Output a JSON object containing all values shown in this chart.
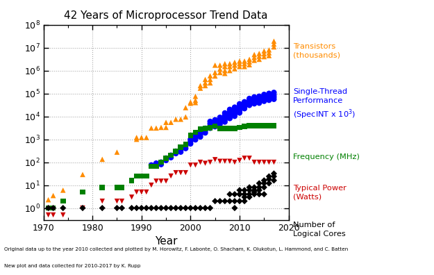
{
  "title": "42 Years of Microprocessor Trend Data",
  "xlabel": "Year",
  "footnote1": "Original data up to the year 2010 collected and plotted by M. Horowitz, F. Labonte, O. Shacham, K. Olukotun, L. Hammond, and C. Batten",
  "footnote2": "New plot and data collected for 2010-2017 by K. Rupp",
  "transistors": {
    "years": [
      1971,
      1972,
      1974,
      1978,
      1982,
      1985,
      1989,
      1989,
      1990,
      1991,
      1992,
      1993,
      1994,
      1995,
      1995,
      1996,
      1997,
      1998,
      1999,
      1999,
      2000,
      2000,
      2001,
      2001,
      2001,
      2002,
      2002,
      2003,
      2003,
      2003,
      2004,
      2004,
      2004,
      2005,
      2005,
      2005,
      2006,
      2006,
      2006,
      2007,
      2007,
      2007,
      2007,
      2008,
      2008,
      2008,
      2009,
      2009,
      2009,
      2010,
      2010,
      2010,
      2011,
      2011,
      2011,
      2012,
      2012,
      2012,
      2013,
      2013,
      2013,
      2014,
      2014,
      2014,
      2015,
      2015,
      2015,
      2016,
      2016,
      2016,
      2017,
      2017,
      2017
    ],
    "values": [
      2.3,
      3.5,
      6,
      29,
      134,
      275,
      1200,
      1000,
      1200,
      1200,
      3100,
      3100,
      3300,
      5500,
      3300,
      5500,
      7500,
      7500,
      9500,
      24000,
      42000,
      37500,
      75000,
      50000,
      40000,
      220000,
      170000,
      410000,
      290000,
      220000,
      592000,
      410000,
      290000,
      1720000,
      820000,
      580000,
      1720000,
      1150000,
      820000,
      2000000,
      1500000,
      1000000,
      750000,
      2000000,
      1500000,
      1000000,
      2300000,
      1720000,
      1200000,
      2600000,
      2000000,
      1500000,
      2600000,
      2000000,
      1500000,
      3100000,
      2400000,
      1800000,
      5000000,
      3750000,
      2800000,
      5600000,
      4200000,
      3100000,
      7200000,
      5400000,
      4050000,
      8000000,
      6000000,
      4500000,
      19200000,
      14400000,
      10800000
    ],
    "color": "#FF8C00",
    "marker": "^",
    "label": "Transistors\n(thousands)"
  },
  "single_thread": {
    "years": [
      1992,
      1993,
      1994,
      1994,
      1995,
      1995,
      1996,
      1996,
      1997,
      1997,
      1998,
      1998,
      1999,
      1999,
      2000,
      2000,
      2000,
      2001,
      2001,
      2001,
      2002,
      2002,
      2002,
      2003,
      2003,
      2003,
      2004,
      2004,
      2004,
      2004,
      2005,
      2005,
      2005,
      2005,
      2006,
      2006,
      2006,
      2006,
      2007,
      2007,
      2007,
      2007,
      2007,
      2008,
      2008,
      2008,
      2008,
      2008,
      2009,
      2009,
      2009,
      2009,
      2009,
      2010,
      2010,
      2010,
      2010,
      2010,
      2011,
      2011,
      2011,
      2011,
      2012,
      2012,
      2012,
      2012,
      2013,
      2013,
      2013,
      2013,
      2014,
      2014,
      2014,
      2014,
      2015,
      2015,
      2015,
      2015,
      2016,
      2016,
      2016,
      2016,
      2017,
      2017,
      2017,
      2017
    ],
    "values": [
      75,
      90,
      100,
      80,
      150,
      120,
      200,
      160,
      300,
      240,
      350,
      280,
      500,
      400,
      1000,
      800,
      640,
      1500,
      1200,
      960,
      2000,
      1600,
      1280,
      3000,
      2400,
      1920,
      6000,
      4800,
      3840,
      3072,
      7000,
      5600,
      4480,
      3584,
      9000,
      7200,
      5760,
      4608,
      14000,
      11200,
      8960,
      7168,
      5734,
      20000,
      16000,
      12800,
      10240,
      8192,
      25000,
      20000,
      16000,
      12800,
      10240,
      35000,
      28000,
      22400,
      17920,
      14336,
      43000,
      34400,
      27520,
      22016,
      60000,
      48000,
      38400,
      30720,
      70000,
      56000,
      44800,
      35840,
      75000,
      60000,
      48000,
      38400,
      90000,
      72000,
      57600,
      46080,
      100000,
      80000,
      64000,
      51200,
      110000,
      88000,
      70400,
      56320
    ],
    "color": "#0000FF",
    "marker": "o",
    "label": "Single-Thread\nPerformance\n(SpecINT x 10³)"
  },
  "frequency": {
    "years": [
      1971,
      1972,
      1974,
      1978,
      1982,
      1985,
      1986,
      1988,
      1989,
      1990,
      1991,
      1992,
      1993,
      1994,
      1995,
      1996,
      1997,
      1998,
      1999,
      2000,
      2001,
      2002,
      2003,
      2004,
      2005,
      2006,
      2007,
      2008,
      2009,
      2010,
      2011,
      2012,
      2013,
      2014,
      2015,
      2016,
      2017
    ],
    "values": [
      1,
      1,
      2,
      5,
      8,
      8,
      8,
      16,
      25,
      25,
      25,
      66,
      66,
      100,
      150,
      200,
      300,
      450,
      600,
      1500,
      2000,
      2800,
      3000,
      3200,
      3800,
      3000,
      2933,
      2933,
      2933,
      3300,
      3600,
      3900,
      3900,
      3900,
      4000,
      4000,
      4000
    ],
    "color": "#008000",
    "marker": "s",
    "label": "Frequency (MHz)"
  },
  "power": {
    "years": [
      1971,
      1972,
      1974,
      1978,
      1982,
      1985,
      1986,
      1988,
      1989,
      1990,
      1991,
      1992,
      1993,
      1994,
      1995,
      1996,
      1997,
      1998,
      1999,
      2000,
      2001,
      2002,
      2003,
      2004,
      2005,
      2006,
      2007,
      2008,
      2009,
      2010,
      2011,
      2012,
      2013,
      2014,
      2015,
      2016,
      2017
    ],
    "values": [
      0.5,
      0.5,
      0.5,
      1,
      2,
      2,
      2,
      3,
      5,
      5,
      5,
      10,
      15,
      15,
      15,
      25,
      35,
      35,
      35,
      75,
      75,
      100,
      90,
      100,
      130,
      110,
      110,
      110,
      100,
      120,
      150,
      150,
      100,
      100,
      100,
      100,
      100
    ],
    "color": "#CC0000",
    "marker": "v",
    "label": "Typical Power\n(Watts)"
  },
  "cores": {
    "years": [
      1971,
      1972,
      1974,
      1978,
      1982,
      1985,
      1986,
      1988,
      1989,
      1990,
      1991,
      1992,
      1993,
      1994,
      1995,
      1996,
      1997,
      1998,
      1999,
      2000,
      2001,
      2002,
      2003,
      2004,
      2005,
      2006,
      2007,
      2008,
      2008,
      2009,
      2009,
      2009,
      2010,
      2010,
      2010,
      2010,
      2011,
      2011,
      2011,
      2011,
      2012,
      2012,
      2012,
      2012,
      2013,
      2013,
      2013,
      2013,
      2014,
      2014,
      2014,
      2014,
      2015,
      2015,
      2015,
      2015,
      2016,
      2016,
      2016,
      2017,
      2017,
      2017
    ],
    "values": [
      1,
      1,
      1,
      1,
      1,
      1,
      1,
      1,
      1,
      1,
      1,
      1,
      1,
      1,
      1,
      1,
      1,
      1,
      1,
      1,
      1,
      1,
      1,
      1,
      2,
      2,
      2,
      4,
      2,
      4,
      2,
      1,
      4,
      6,
      4,
      2,
      6,
      4,
      3,
      2,
      8,
      6,
      4,
      3,
      8,
      6,
      5,
      4,
      12,
      8,
      6,
      4,
      16,
      12,
      8,
      4,
      24,
      18,
      12,
      32,
      24,
      16
    ],
    "color": "#000000",
    "marker": "D",
    "label": "Number of\nLogical Cores"
  },
  "xlim": [
    1970,
    2020
  ],
  "ylim": [
    0.3,
    100000000.0
  ],
  "background_color": "#FFFFFF"
}
